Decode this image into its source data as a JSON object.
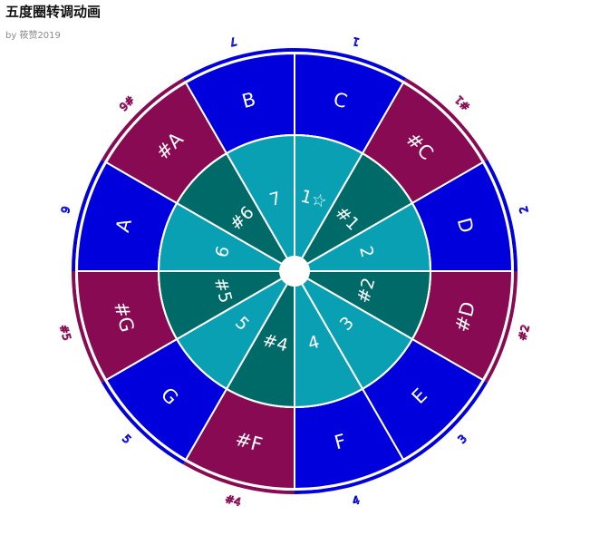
{
  "header": {
    "title": "五度圈转调动画",
    "subtitle": "by 筱赞2019"
  },
  "colors": {
    "natural": "#0000dd",
    "sharp": "#880a52",
    "inner_light": "#0aa0b4",
    "inner_dark": "#006a68",
    "center": "#ffffff",
    "divider": "#ffffff"
  },
  "circle": {
    "keys": [
      {
        "label": "C",
        "kind": "natural"
      },
      {
        "label": "#C",
        "kind": "sharp"
      },
      {
        "label": "D",
        "kind": "natural"
      },
      {
        "label": "#D",
        "kind": "sharp"
      },
      {
        "label": "E",
        "kind": "natural"
      },
      {
        "label": "F",
        "kind": "natural"
      },
      {
        "label": "#F",
        "kind": "sharp"
      },
      {
        "label": "G",
        "kind": "natural"
      },
      {
        "label": "#G",
        "kind": "sharp"
      },
      {
        "label": "A",
        "kind": "natural"
      },
      {
        "label": "#A",
        "kind": "sharp"
      },
      {
        "label": "B",
        "kind": "natural"
      }
    ],
    "degrees": [
      {
        "label": "1☆",
        "shade": "light"
      },
      {
        "label": "#1",
        "shade": "dark"
      },
      {
        "label": "2",
        "shade": "light"
      },
      {
        "label": "#2",
        "shade": "dark"
      },
      {
        "label": "3",
        "shade": "light"
      },
      {
        "label": "4",
        "shade": "light"
      },
      {
        "label": "#4",
        "shade": "dark"
      },
      {
        "label": "5",
        "shade": "light"
      },
      {
        "label": "#5",
        "shade": "dark"
      },
      {
        "label": "6",
        "shade": "light"
      },
      {
        "label": "#6",
        "shade": "dark"
      },
      {
        "label": "7",
        "shade": "light"
      }
    ],
    "outer_degrees": [
      {
        "label": "1",
        "kind": "natural"
      },
      {
        "label": "#1",
        "kind": "sharp"
      },
      {
        "label": "2",
        "kind": "natural"
      },
      {
        "label": "#2",
        "kind": "sharp"
      },
      {
        "label": "3",
        "kind": "natural"
      },
      {
        "label": "4",
        "kind": "natural"
      },
      {
        "label": "#4",
        "kind": "sharp"
      },
      {
        "label": "5",
        "kind": "natural"
      },
      {
        "label": "#5",
        "kind": "sharp"
      },
      {
        "label": "6",
        "kind": "natural"
      },
      {
        "label": "#6",
        "kind": "sharp"
      },
      {
        "label": "7",
        "kind": "natural"
      }
    ]
  }
}
